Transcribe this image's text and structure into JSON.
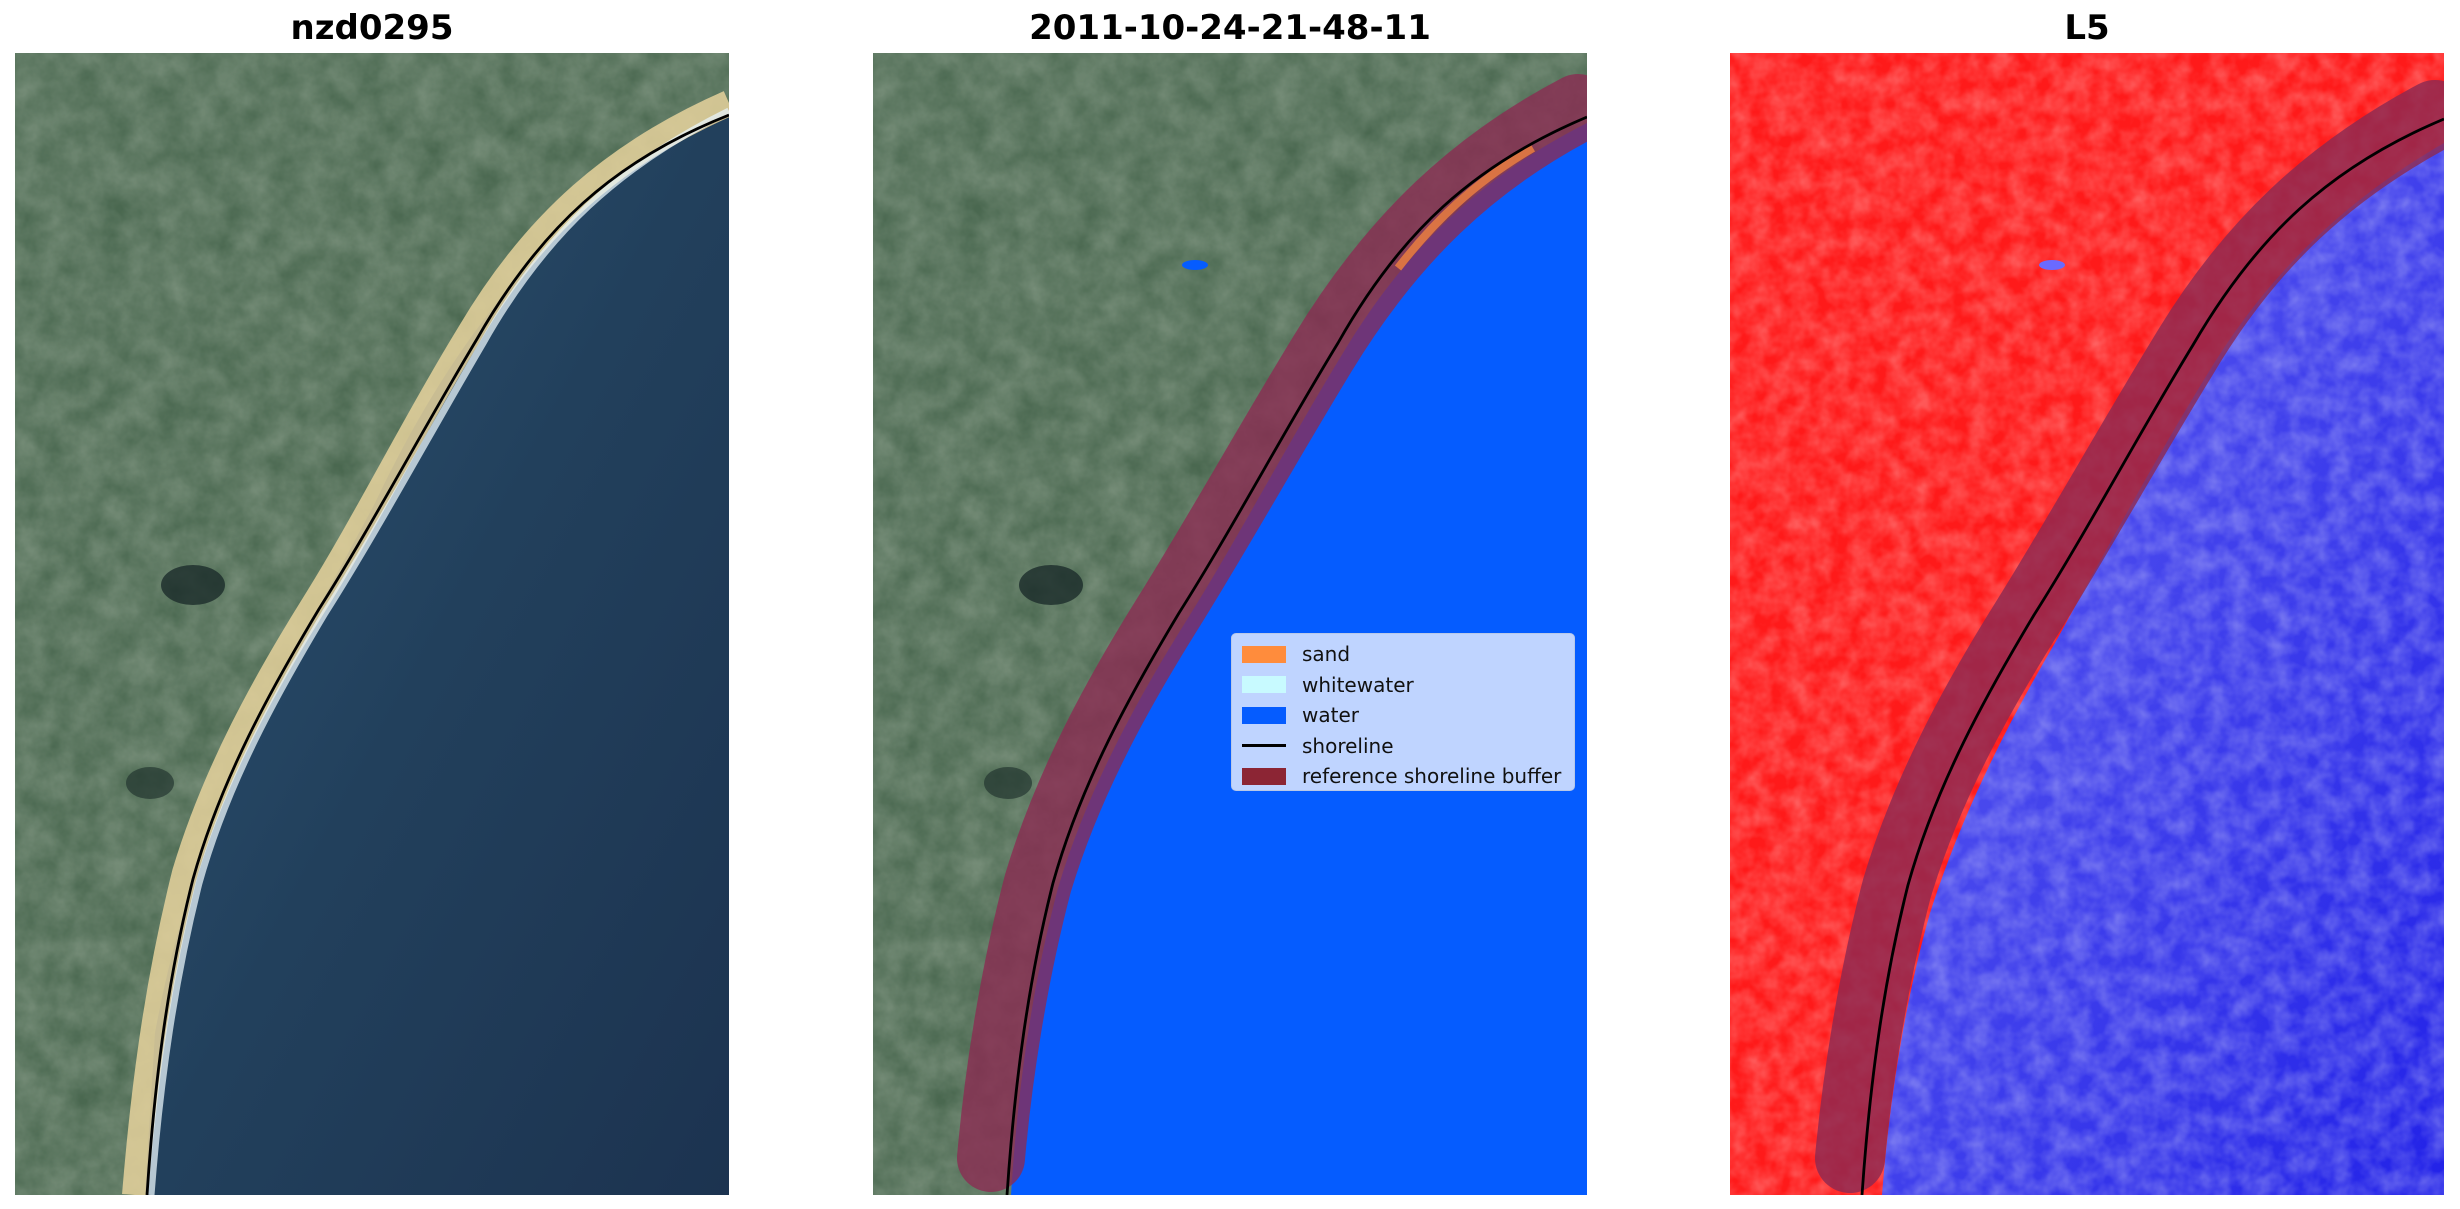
{
  "titles": {
    "left": "nzd0295",
    "middle": "2011-10-24-21-48-11",
    "right": "L5"
  },
  "legend": {
    "items": [
      {
        "label": "sand",
        "color": "#ff8c3c",
        "kind": "patch"
      },
      {
        "label": "whitewater",
        "color": "#c8faff",
        "kind": "patch"
      },
      {
        "label": "water",
        "color": "#055cff",
        "kind": "patch"
      },
      {
        "label": "shoreline",
        "color": "#000000",
        "kind": "line"
      },
      {
        "label": "reference shoreline buffer",
        "color": "#8c2534",
        "kind": "patch"
      }
    ]
  },
  "colors": {
    "land": "#4a6850",
    "ocean": "#25405a",
    "water": "#055cff",
    "buffer": "#8c2a52",
    "index_land": "#ff1a1a",
    "index_water": "#3a3aee"
  }
}
